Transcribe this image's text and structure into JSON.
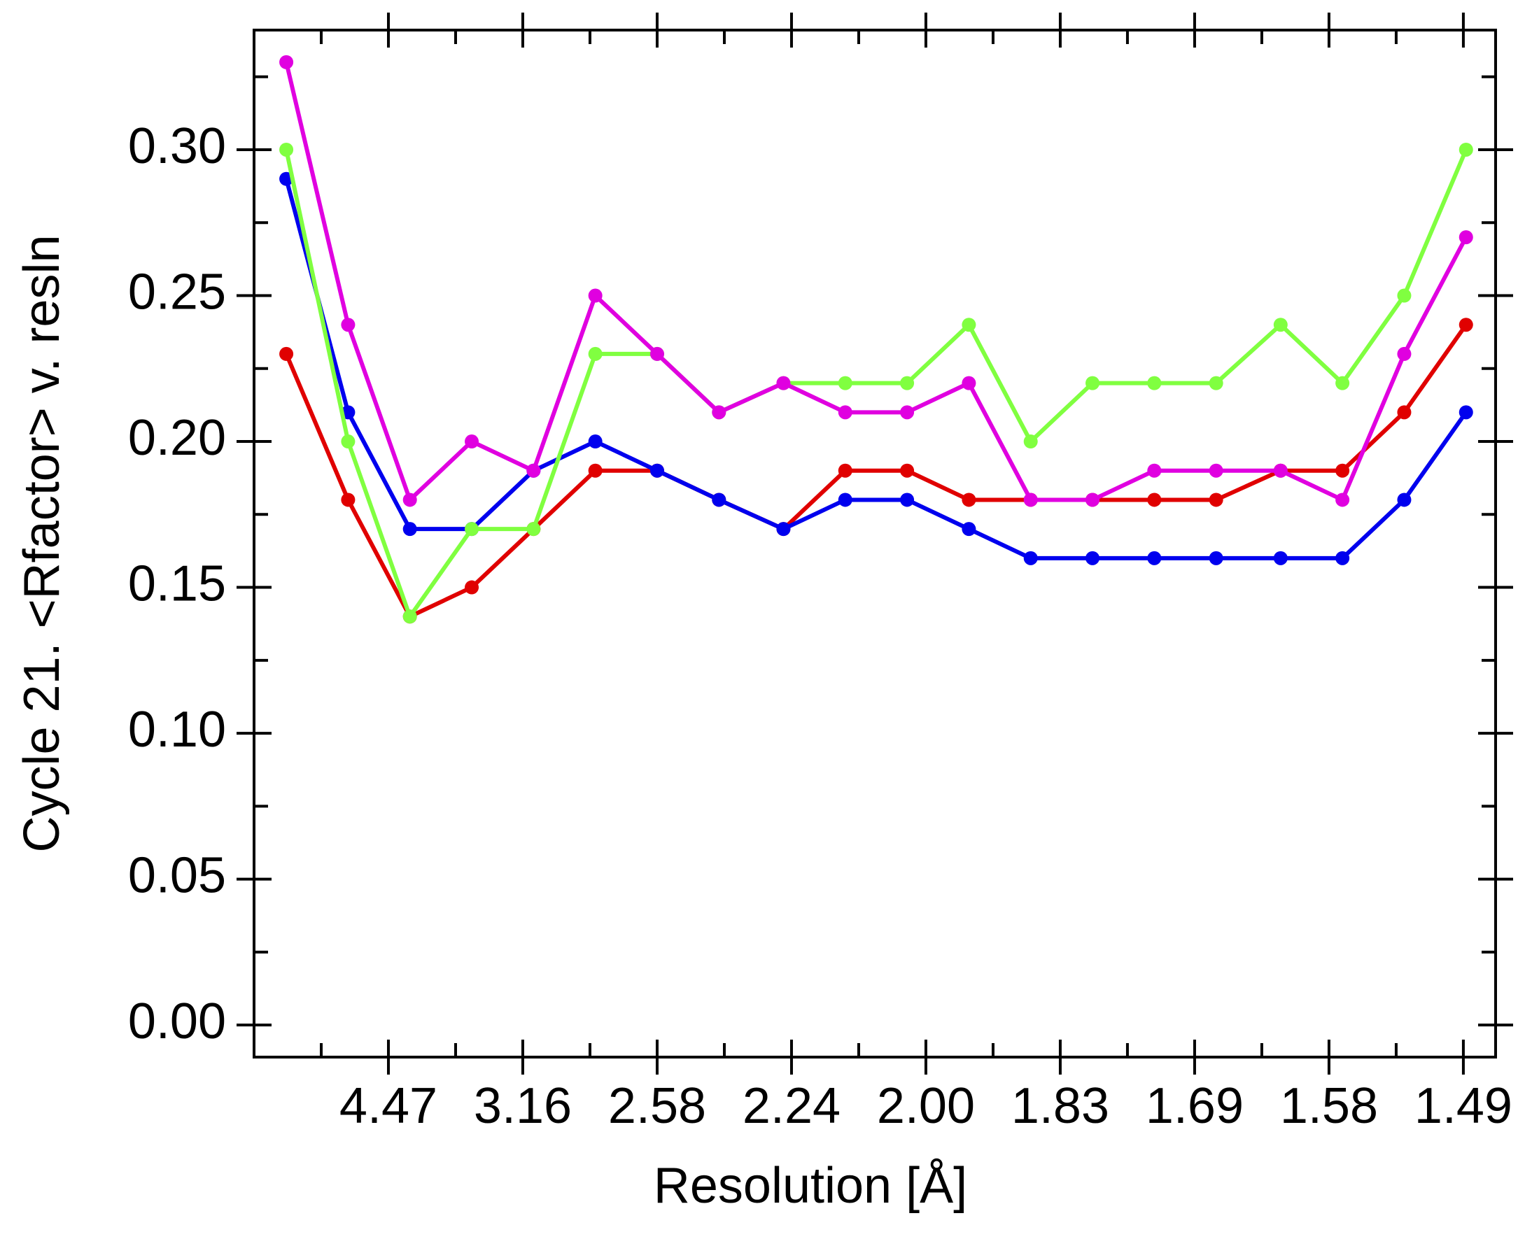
{
  "chart_data": {
    "type": "line",
    "x_label": "Resolution [Å]",
    "y_label": "Cycle 21. <Rfactor> v. resln",
    "x": [
      0.012,
      0.035,
      0.058,
      0.081,
      0.104,
      0.127,
      0.15,
      0.173,
      0.197,
      0.22,
      0.243,
      0.266,
      0.289,
      0.312,
      0.335,
      0.358,
      0.382,
      0.405,
      0.428,
      0.451
    ],
    "series": [
      {
        "color": "#e00000",
        "values": [
          0.23,
          0.18,
          0.14,
          0.15,
          0.17,
          0.19,
          0.19,
          0.18,
          0.17,
          0.19,
          0.19,
          0.18,
          0.18,
          0.18,
          0.18,
          0.18,
          0.19,
          0.19,
          0.21,
          0.24
        ]
      },
      {
        "color": "#0000ee",
        "values": [
          0.29,
          0.21,
          0.17,
          0.17,
          0.19,
          0.2,
          0.19,
          0.18,
          0.17,
          0.18,
          0.18,
          0.17,
          0.16,
          0.16,
          0.16,
          0.16,
          0.16,
          0.16,
          0.18,
          0.21
        ]
      },
      {
        "color": "#80ff40",
        "values": [
          0.3,
          0.2,
          0.14,
          0.17,
          0.17,
          0.23,
          0.23,
          0.21,
          0.22,
          0.22,
          0.22,
          0.24,
          0.2,
          0.22,
          0.22,
          0.22,
          0.24,
          0.22,
          0.25,
          0.3
        ]
      },
      {
        "color": "#e000e0",
        "values": [
          0.33,
          0.24,
          0.18,
          0.2,
          0.19,
          0.25,
          0.23,
          0.21,
          0.22,
          0.21,
          0.21,
          0.22,
          0.18,
          0.18,
          0.19,
          0.19,
          0.19,
          0.18,
          0.23,
          0.27
        ]
      }
    ],
    "xlim": [
      0,
      0.462
    ],
    "xticks": [
      {
        "value": 0.05,
        "label": "4.47"
      },
      {
        "value": 0.1,
        "label": "3.16"
      },
      {
        "value": 0.15,
        "label": "2.58"
      },
      {
        "value": 0.2,
        "label": "2.24"
      },
      {
        "value": 0.25,
        "label": "2.00"
      },
      {
        "value": 0.3,
        "label": "1.83"
      },
      {
        "value": 0.35,
        "label": "1.69"
      },
      {
        "value": 0.4,
        "label": "1.58"
      },
      {
        "value": 0.45,
        "label": "1.49"
      }
    ],
    "xminorticks": [
      0.025,
      0.075,
      0.125,
      0.175,
      0.225,
      0.275,
      0.325,
      0.375,
      0.425
    ],
    "ylim": [
      -0.011,
      0.341
    ],
    "yticks": [
      {
        "value": 0,
        "label": "0.00"
      },
      {
        "value": 0.05,
        "label": "0.05"
      },
      {
        "value": 0.1,
        "label": "0.10"
      },
      {
        "value": 0.15,
        "label": "0.15"
      },
      {
        "value": 0.2,
        "label": "0.20"
      },
      {
        "value": 0.25,
        "label": "0.25"
      },
      {
        "value": 0.3,
        "label": "0.30"
      }
    ],
    "yminorticks": [
      0.025,
      0.075,
      0.125,
      0.175,
      0.225,
      0.275,
      0.325
    ]
  }
}
